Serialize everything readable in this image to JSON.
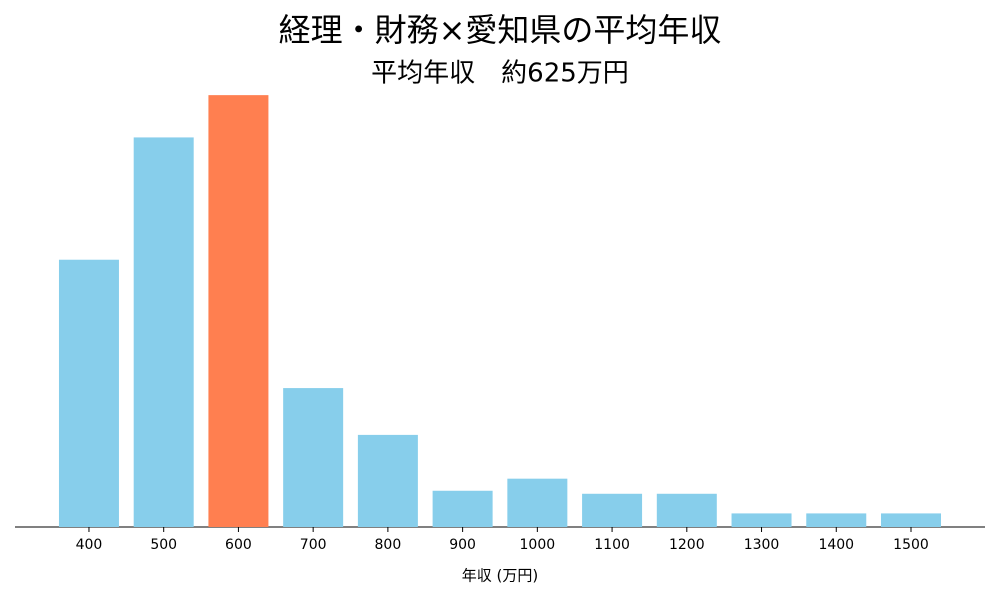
{
  "chart_data": {
    "type": "bar",
    "title": "経理・財務×愛知県の平均年収",
    "subtitle": "平均年収　約625万円",
    "x_label": "年収 (万円)",
    "categories": [
      "400",
      "500",
      "600",
      "700",
      "800",
      "900",
      "1000",
      "1100",
      "1200",
      "1300",
      "1400",
      "1500"
    ],
    "values": [
      17.7,
      25.8,
      28.6,
      9.2,
      6.1,
      2.4,
      3.2,
      2.2,
      2.2,
      0.9,
      0.9,
      0.9
    ],
    "colors": [
      "#87ceeb",
      "#87ceeb",
      "#ff7f50",
      "#87ceeb",
      "#87ceeb",
      "#87ceeb",
      "#87ceeb",
      "#87ceeb",
      "#87ceeb",
      "#87ceeb",
      "#87ceeb",
      "#87ceeb"
    ],
    "ylim": [
      0,
      30
    ]
  }
}
